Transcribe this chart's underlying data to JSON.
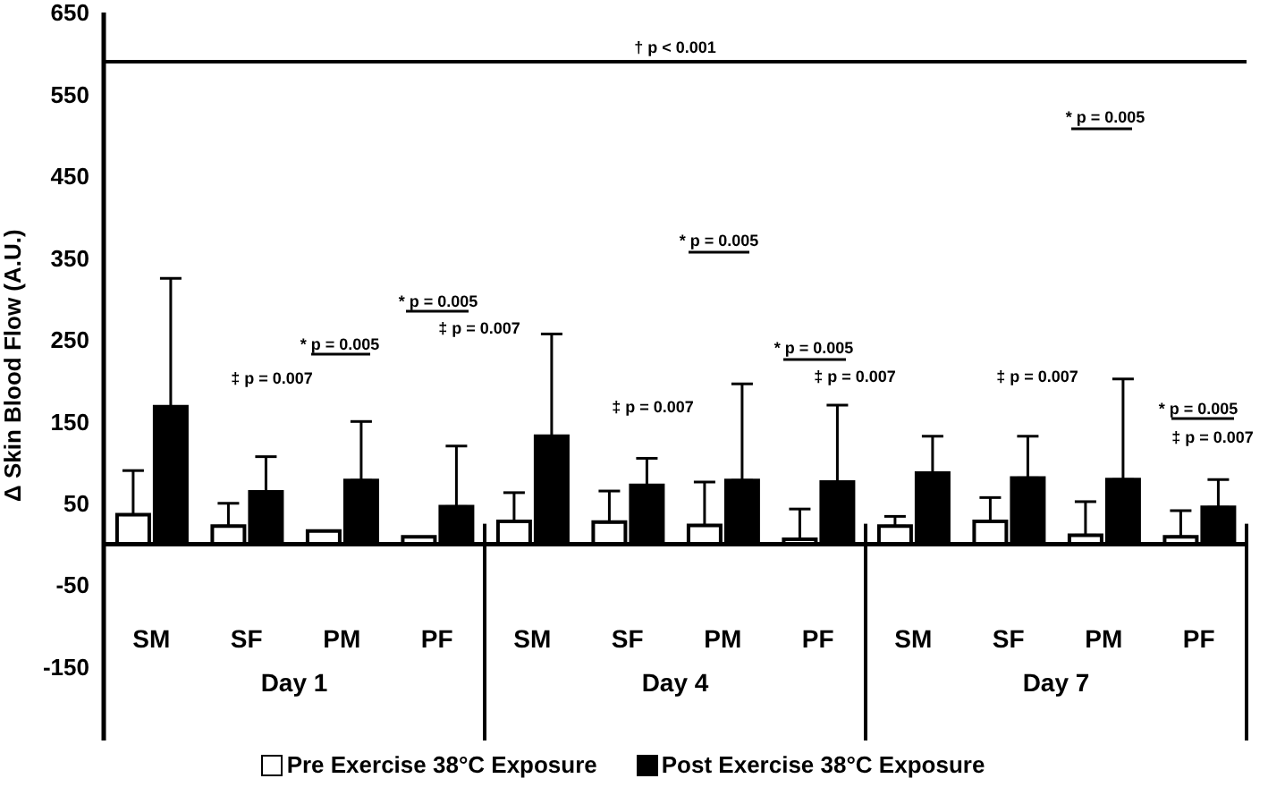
{
  "chart_data": {
    "type": "bar",
    "ylabel": "Δ Skin Blood Flow (A.U.)",
    "categories": [
      "SM",
      "SF",
      "PM",
      "PF",
      "SM",
      "SF",
      "PM",
      "PF",
      "SM",
      "SF",
      "PM",
      "PF"
    ],
    "series": [
      {
        "name": "Pre Exercise 38°C Exposure",
        "color": "#ffffff",
        "values": [
          36,
          22,
          16,
          9,
          28,
          27,
          23,
          6,
          22,
          28,
          11,
          9
        ],
        "errors": [
          [
            36,
            90
          ],
          [
            22,
            50
          ],
          null,
          null,
          [
            28,
            63
          ],
          [
            27,
            65
          ],
          [
            23,
            76
          ],
          [
            6,
            43
          ],
          [
            22,
            34
          ],
          [
            28,
            57
          ],
          [
            11,
            52
          ],
          [
            9,
            41
          ]
        ]
      },
      {
        "name": "Post Exercise 38°C Exposure",
        "color": "#000000",
        "values": [
          168,
          64,
          78,
          46,
          132,
          72,
          78,
          76,
          87,
          81,
          79,
          45
        ],
        "errors": [
          [
            168,
            325
          ],
          [
            64,
            107
          ],
          [
            78,
            150
          ],
          [
            46,
            120
          ],
          [
            132,
            257
          ],
          [
            72,
            105
          ],
          [
            78,
            196
          ],
          [
            76,
            170
          ],
          [
            87,
            132
          ],
          [
            81,
            132
          ],
          [
            79,
            202
          ],
          [
            45,
            79
          ]
        ]
      }
    ],
    "ylim": [
      -240,
      650
    ],
    "yticks": [
      650,
      550,
      450,
      350,
      250,
      150,
      50,
      -50,
      -150
    ],
    "ref_lines": [
      {
        "axis": "y",
        "value": 0
      },
      {
        "axis": "y",
        "value": 590,
        "label": "† p < 0.001"
      }
    ],
    "legend": "bottom",
    "annotations": [
      "‡ p = 0.007",
      "* p = 0.005",
      "* p = 0.005",
      "‡ p = 0.007",
      "* p = 0.005",
      "‡ p = 0.007",
      "* p = 0.005",
      "‡ p = 0.007",
      "* p = 0.005",
      "‡ p = 0.007",
      "* p = 0.005",
      "‡ p = 0.007",
      "Day 1",
      "Day 4",
      "Day 7"
    ]
  }
}
